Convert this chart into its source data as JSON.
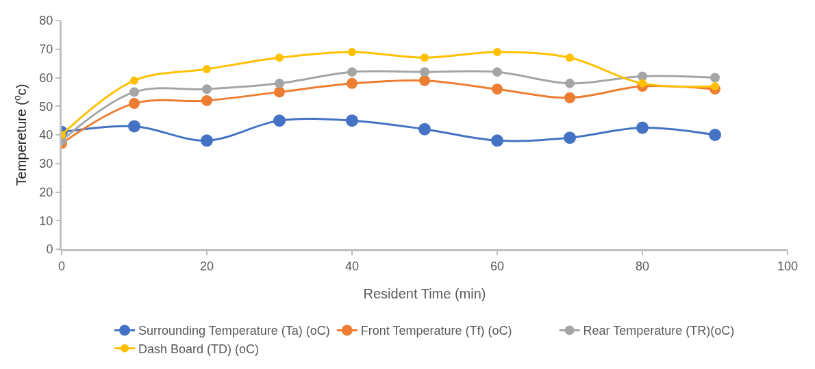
{
  "chart_data": {
    "type": "line",
    "xlabel": "Resident Time (min)",
    "ylabel": "Tempereture ($^{o}$c)",
    "x": [
      0,
      10,
      20,
      30,
      40,
      50,
      60,
      70,
      80,
      90
    ],
    "series": [
      {
        "name": "Surrounding Temperature (Ta) (oC)",
        "color": "#4472c4",
        "values": [
          41,
          43,
          38,
          45,
          45,
          42,
          38,
          39,
          42.5,
          40
        ]
      },
      {
        "name": "Front Temperature (Tf) (oC)",
        "color": "#ed7d31",
        "values": [
          37,
          51,
          52,
          55,
          58,
          59,
          56,
          53,
          57,
          56
        ]
      },
      {
        "name": "Rear Temperature (TR)(oC)",
        "color": "#a5a5a5",
        "values": [
          38,
          55,
          56,
          58,
          62,
          62,
          62,
          58,
          60.5,
          60
        ]
      },
      {
        "name": "Dash Board (TD) (oC)",
        "color": "#ffc000",
        "values": [
          40,
          59,
          63,
          67,
          69,
          67,
          69,
          67,
          58,
          57
        ]
      }
    ],
    "xlim": [
      0,
      100
    ],
    "xticks": [
      0,
      20,
      40,
      60,
      80,
      100
    ],
    "ylim": [
      0,
      80
    ],
    "yticks": [
      0,
      10,
      20,
      30,
      40,
      50,
      60,
      70,
      80
    ],
    "grid": false,
    "legend": "bottom",
    "marker": "circle",
    "line_style": "solid"
  }
}
